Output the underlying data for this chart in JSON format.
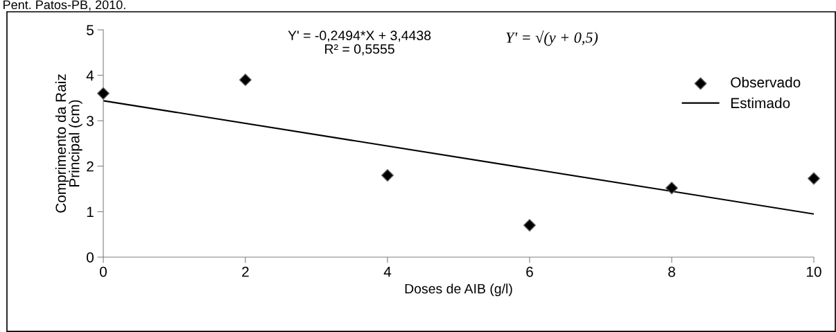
{
  "chart_data": {
    "type": "scatter",
    "xlabel": "Doses de AIB (g/l)",
    "ylabel": "Comprimento da Raiz\nPrincipal (cm)",
    "x": [
      0,
      2,
      4,
      6,
      8,
      10
    ],
    "series": [
      {
        "name": "Observado",
        "color": "#000000",
        "marker": "diamond",
        "values": [
          3.6,
          3.9,
          1.8,
          0.7,
          1.52,
          1.73
        ]
      },
      {
        "name": "Estimado",
        "type": "line",
        "color": "#000000",
        "marker": "none",
        "line_style": "solid",
        "x": [
          0,
          10
        ],
        "values": [
          3.44,
          0.95
        ]
      }
    ],
    "xlim": [
      0,
      10
    ],
    "xticks": [
      0,
      2,
      4,
      6,
      8,
      10
    ],
    "ylim": [
      0,
      5
    ],
    "yticks": [
      0,
      1,
      2,
      3,
      4,
      5
    ],
    "grid": false,
    "legend": "top right",
    "annotations": [
      "Pent. Patos-PB, 2010.",
      "Y' = -0,2494*X + 3,4438\nR² = 0,5555",
      "Y' = √(y + 0,5)"
    ]
  }
}
